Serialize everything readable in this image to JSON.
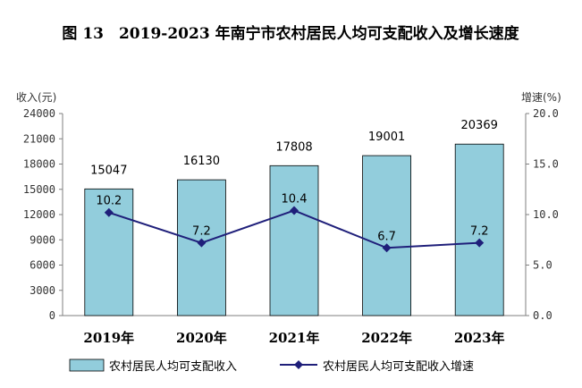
{
  "chart_data": {
    "type": "bar",
    "title": "图 13　2019-2023 年南宁市农村居民人均可支配收入及增长速度",
    "categories": [
      "2019年",
      "2020年",
      "2021年",
      "2022年",
      "2023年"
    ],
    "ylabel_left": "收入(元)",
    "ylabel_right": "增速(%)",
    "ylim_left": [
      0,
      24000
    ],
    "ylim_right": [
      0,
      20
    ],
    "yticks_left": [
      "0",
      "3000",
      "6000",
      "9000",
      "12000",
      "15000",
      "18000",
      "21000",
      "24000"
    ],
    "yticks_right": [
      "0.0",
      "5.0",
      "10.0",
      "15.0",
      "20.0"
    ],
    "grid": false,
    "legend_position": "bottom",
    "series": [
      {
        "name": "农村居民人均可支配收入",
        "type": "bar",
        "axis": "left",
        "values": [
          15047,
          16130,
          17808,
          19001,
          20369
        ],
        "labels": [
          "15047",
          "16130",
          "17808",
          "19001",
          "20369"
        ],
        "color": "#92CDDC"
      },
      {
        "name": "农村居民人均可支配收入增速",
        "type": "line",
        "axis": "right",
        "values": [
          10.2,
          7.2,
          10.4,
          6.7,
          7.2
        ],
        "labels": [
          "10.2",
          "7.2",
          "10.4",
          "6.7",
          "7.2"
        ],
        "color": "#1F1F7A"
      }
    ]
  }
}
